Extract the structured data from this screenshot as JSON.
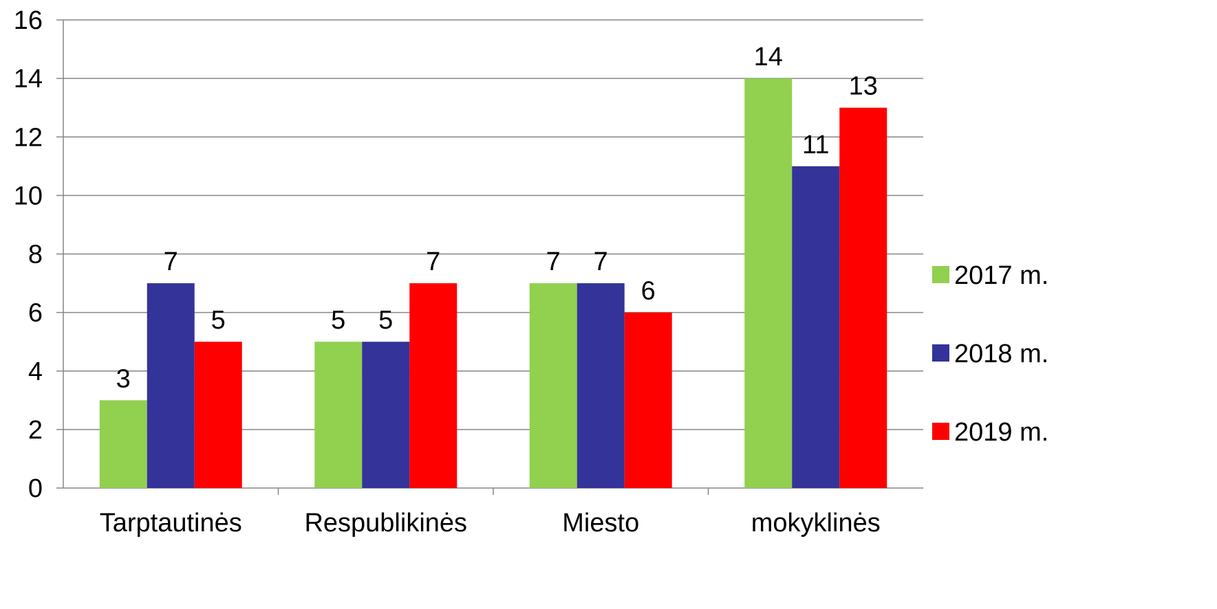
{
  "chart_data": {
    "type": "bar",
    "title": "",
    "xlabel": "",
    "ylabel": "",
    "ylim": [
      0,
      16
    ],
    "yticks": [
      0,
      2,
      4,
      6,
      8,
      10,
      12,
      14,
      16
    ],
    "grid": true,
    "legend_position": "right",
    "categories": [
      "Tarptautinės",
      "Respublikinės",
      "Miesto",
      "mokyklinės"
    ],
    "series": [
      {
        "name": "2017 m.",
        "color": "#92d050",
        "values": [
          3,
          5,
          7,
          14
        ]
      },
      {
        "name": "2018 m.",
        "color": "#333399",
        "values": [
          7,
          5,
          7,
          11
        ]
      },
      {
        "name": "2019 m.",
        "color": "#ff0000",
        "values": [
          5,
          7,
          6,
          13
        ]
      }
    ]
  }
}
